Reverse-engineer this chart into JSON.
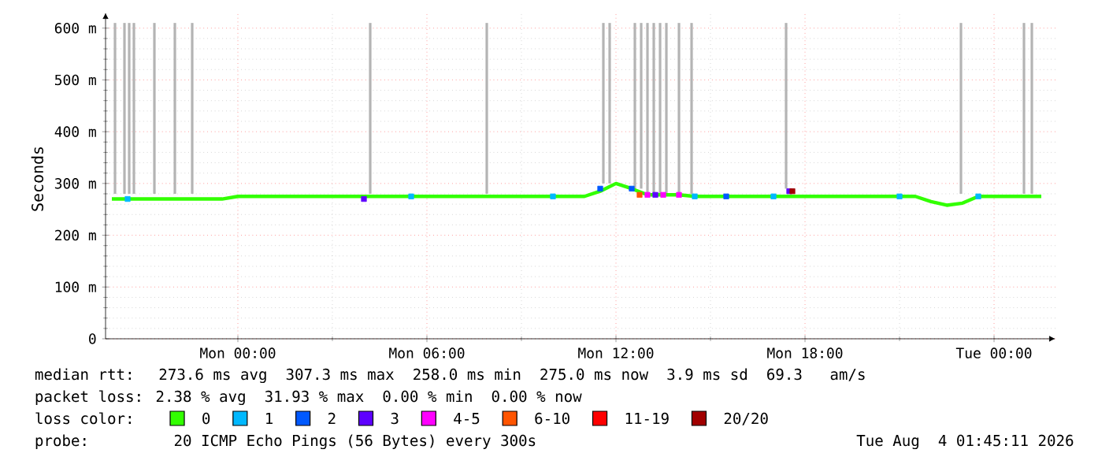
{
  "chart_data": {
    "type": "line",
    "ylabel": "Seconds",
    "xlim": [
      "2026-08-02T19:48",
      "2026-08-04T01:57"
    ],
    "ylim": [
      0,
      630
    ],
    "xticks": [
      {
        "value": "2026-08-03T00:00",
        "label": "Mon 00:00"
      },
      {
        "value": "2026-08-03T06:00",
        "label": "Mon 06:00"
      },
      {
        "value": "2026-08-03T12:00",
        "label": "Mon 12:00"
      },
      {
        "value": "2026-08-03T18:00",
        "label": "Mon 18:00"
      },
      {
        "value": "2026-08-04T00:00",
        "label": "Tue 00:00"
      }
    ],
    "yticks": [
      {
        "value": 0,
        "label": "0"
      },
      {
        "value": 100,
        "label": "100 m"
      },
      {
        "value": 200,
        "label": "200 m"
      },
      {
        "value": 300,
        "label": "300 m"
      },
      {
        "value": 400,
        "label": "400 m"
      },
      {
        "value": 500,
        "label": "500 m"
      },
      {
        "value": 600,
        "label": "600 m"
      }
    ],
    "grid": true,
    "legend": "bottom",
    "legend_title": "loss color:",
    "annotations": [
      "median rtt:  273.6 ms avg  307.3 ms max  258.0 ms min  275.0 ms now  3.9 ms sd  69.3   am/s",
      "packet loss: 2.38 % avg  31.93 % max  0.00 % min  0.00 % now",
      "probe:       20 ICMP Echo Pings (56 Bytes) every 300s",
      "Tue Aug  4 01:45:11 2026"
    ],
    "series": [
      {
        "type": "bar",
        "color": "#b4b4b4",
        "x": [
          "2026-08-02T20:06",
          "2026-08-02T20:24",
          "2026-08-02T20:33",
          "2026-08-02T20:42",
          "2026-08-02T21:21",
          "2026-08-02T22:00",
          "2026-08-02T22:33",
          "2026-08-03T04:12",
          "2026-08-03T07:54",
          "2026-08-03T11:36",
          "2026-08-03T11:48",
          "2026-08-03T12:36",
          "2026-08-03T12:48",
          "2026-08-03T13:00",
          "2026-08-03T13:12",
          "2026-08-03T13:24",
          "2026-08-03T13:36",
          "2026-08-03T14:00",
          "2026-08-03T14:24",
          "2026-08-03T17:24",
          "2026-08-03T22:57",
          "2026-08-04T00:57",
          "2026-08-04T01:12"
        ],
        "base": [
          280,
          280,
          280,
          280,
          280,
          280,
          280,
          280,
          280,
          300,
          300,
          290,
          290,
          280,
          280,
          280,
          280,
          280,
          280,
          290,
          280,
          280,
          280
        ],
        "values": [
          330,
          330,
          330,
          330,
          330,
          330,
          330,
          330,
          330,
          310,
          310,
          320,
          320,
          330,
          330,
          330,
          330,
          330,
          330,
          320,
          330,
          330,
          330
        ]
      },
      {
        "name": "0",
        "color": "#32ff00",
        "x": [
          "2026-08-02T20:00",
          "2026-08-02T20:30",
          "2026-08-02T21:00",
          "2026-08-02T21:30",
          "2026-08-02T22:00",
          "2026-08-02T22:30",
          "2026-08-02T23:00",
          "2026-08-02T23:30",
          "2026-08-03T00:00",
          "2026-08-03T00:30",
          "2026-08-03T01:00",
          "2026-08-03T01:30",
          "2026-08-03T02:00",
          "2026-08-03T02:30",
          "2026-08-03T03:00",
          "2026-08-03T03:30",
          "2026-08-03T04:00",
          "2026-08-03T04:30",
          "2026-08-03T05:00",
          "2026-08-03T05:30",
          "2026-08-03T06:00",
          "2026-08-03T06:30",
          "2026-08-03T07:00",
          "2026-08-03T07:30",
          "2026-08-03T08:00",
          "2026-08-03T08:30",
          "2026-08-03T09:00",
          "2026-08-03T09:30",
          "2026-08-03T10:00",
          "2026-08-03T10:30",
          "2026-08-03T11:00",
          "2026-08-03T11:30",
          "2026-08-03T12:00",
          "2026-08-03T12:30",
          "2026-08-03T13:00",
          "2026-08-03T13:30",
          "2026-08-03T14:00",
          "2026-08-03T14:30",
          "2026-08-03T15:00",
          "2026-08-03T15:30",
          "2026-08-03T16:00",
          "2026-08-03T16:30",
          "2026-08-03T17:00",
          "2026-08-03T17:30",
          "2026-08-03T18:00",
          "2026-08-03T18:30",
          "2026-08-03T19:00",
          "2026-08-03T19:30",
          "2026-08-03T20:00",
          "2026-08-03T20:30",
          "2026-08-03T21:00",
          "2026-08-03T21:30",
          "2026-08-03T22:00",
          "2026-08-03T22:30",
          "2026-08-03T23:00",
          "2026-08-03T23:30",
          "2026-08-04T00:00",
          "2026-08-04T00:30",
          "2026-08-04T01:00",
          "2026-08-04T01:30"
        ],
        "values": [
          270,
          270,
          270,
          270,
          270,
          270,
          270,
          270,
          275,
          275,
          275,
          275,
          275,
          275,
          275,
          275,
          275,
          275,
          275,
          275,
          275,
          275,
          275,
          275,
          275,
          275,
          275,
          275,
          275,
          275,
          275,
          285,
          300,
          290,
          278,
          278,
          278,
          275,
          275,
          275,
          275,
          275,
          275,
          275,
          275,
          275,
          275,
          275,
          275,
          275,
          275,
          275,
          265,
          258,
          262,
          275,
          275,
          275,
          275,
          275
        ]
      },
      {
        "name": "1",
        "type": "scatter",
        "marker": "square",
        "color": "#00b8ff",
        "x": [
          "2026-08-02T20:30",
          "2026-08-03T05:30",
          "2026-08-03T10:00",
          "2026-08-03T14:30",
          "2026-08-03T17:00",
          "2026-08-03T21:00",
          "2026-08-03T23:30"
        ],
        "values": [
          270,
          275,
          275,
          275,
          275,
          275,
          275
        ]
      },
      {
        "name": "2",
        "type": "scatter",
        "marker": "square",
        "color": "#0059ff",
        "x": [
          "2026-08-03T11:30",
          "2026-08-03T12:30",
          "2026-08-03T15:30"
        ],
        "values": [
          290,
          290,
          275
        ]
      },
      {
        "name": "3",
        "type": "scatter",
        "marker": "square",
        "color": "#5e00ff",
        "x": [
          "2026-08-03T04:00",
          "2026-08-03T13:15",
          "2026-08-03T17:30"
        ],
        "values": [
          270,
          278,
          285
        ]
      },
      {
        "name": "4-5",
        "type": "scatter",
        "marker": "square",
        "color": "#ff00ff",
        "x": [
          "2026-08-03T13:00",
          "2026-08-03T13:30",
          "2026-08-03T14:00"
        ],
        "values": [
          278,
          278,
          278
        ]
      },
      {
        "name": "6-10",
        "type": "scatter",
        "marker": "square",
        "color": "#ff5500",
        "x": [
          "2026-08-03T12:45"
        ],
        "values": [
          278
        ]
      },
      {
        "name": "11-19",
        "type": "scatter",
        "marker": "square",
        "color": "#ff0000"
      },
      {
        "name": "20/20",
        "type": "scatter",
        "marker": "square",
        "color": "#a10000",
        "x": [
          "2026-08-03T17:36"
        ],
        "values": [
          285
        ]
      }
    ]
  }
}
